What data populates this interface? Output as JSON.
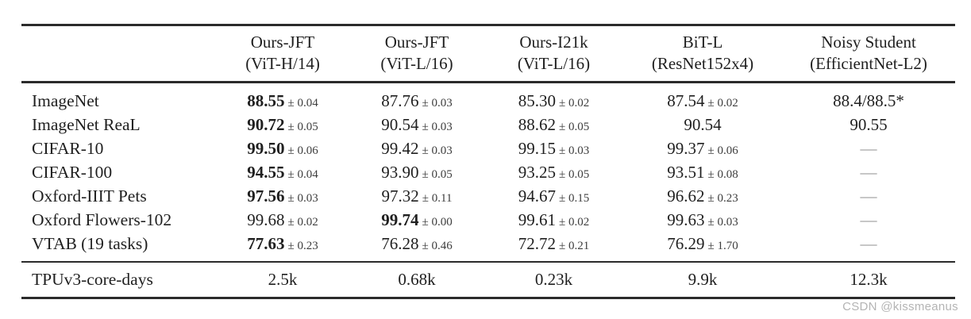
{
  "watermark": {
    "text": "CSDN @kissmeanus",
    "color": "#b4b4b4"
  },
  "colors": {
    "rule": "#2b2b2b",
    "text": "#1f1f1f",
    "error_margin": "#3d3d3d",
    "dash": "#8f8f8f",
    "background": "#ffffff"
  },
  "table": {
    "header": {
      "corner": "",
      "columns": [
        {
          "line1": "Ours-JFT",
          "line2": "(ViT-H/14)"
        },
        {
          "line1": "Ours-JFT",
          "line2": "(ViT-L/16)"
        },
        {
          "line1": "Ours-I21k",
          "line2": "(ViT-L/16)"
        },
        {
          "line1": "BiT-L",
          "line2": "(ResNet152x4)"
        },
        {
          "line1": "Noisy Student",
          "line2": "(EfficientNet-L2)"
        }
      ]
    },
    "rows": [
      {
        "label": "ImageNet",
        "cells": [
          {
            "value": "88.55",
            "err": "± 0.04",
            "bold": true
          },
          {
            "value": "87.76",
            "err": "± 0.03",
            "bold": false
          },
          {
            "value": "85.30",
            "err": "± 0.02",
            "bold": false
          },
          {
            "value": "87.54",
            "err": "± 0.02",
            "bold": false
          },
          {
            "value": "88.4/88.5*",
            "err": null,
            "bold": false
          }
        ]
      },
      {
        "label": "ImageNet ReaL",
        "cells": [
          {
            "value": "90.72",
            "err": "± 0.05",
            "bold": true
          },
          {
            "value": "90.54",
            "err": "± 0.03",
            "bold": false
          },
          {
            "value": "88.62",
            "err": "± 0.05",
            "bold": false
          },
          {
            "value": "90.54",
            "err": null,
            "bold": false
          },
          {
            "value": "90.55",
            "err": null,
            "bold": false
          }
        ]
      },
      {
        "label": "CIFAR-10",
        "cells": [
          {
            "value": "99.50",
            "err": "± 0.06",
            "bold": true
          },
          {
            "value": "99.42",
            "err": "± 0.03",
            "bold": false
          },
          {
            "value": "99.15",
            "err": "± 0.03",
            "bold": false
          },
          {
            "value": "99.37",
            "err": "± 0.06",
            "bold": false
          },
          {
            "value": "—",
            "err": null,
            "bold": false
          }
        ]
      },
      {
        "label": "CIFAR-100",
        "cells": [
          {
            "value": "94.55",
            "err": "± 0.04",
            "bold": true
          },
          {
            "value": "93.90",
            "err": "± 0.05",
            "bold": false
          },
          {
            "value": "93.25",
            "err": "± 0.05",
            "bold": false
          },
          {
            "value": "93.51",
            "err": "± 0.08",
            "bold": false
          },
          {
            "value": "—",
            "err": null,
            "bold": false
          }
        ]
      },
      {
        "label": "Oxford-IIIT Pets",
        "cells": [
          {
            "value": "97.56",
            "err": "± 0.03",
            "bold": true
          },
          {
            "value": "97.32",
            "err": "± 0.11",
            "bold": false
          },
          {
            "value": "94.67",
            "err": "± 0.15",
            "bold": false
          },
          {
            "value": "96.62",
            "err": "± 0.23",
            "bold": false
          },
          {
            "value": "—",
            "err": null,
            "bold": false
          }
        ]
      },
      {
        "label": "Oxford Flowers-102",
        "cells": [
          {
            "value": "99.68",
            "err": "± 0.02",
            "bold": false
          },
          {
            "value": "99.74",
            "err": "± 0.00",
            "bold": true
          },
          {
            "value": "99.61",
            "err": "± 0.02",
            "bold": false
          },
          {
            "value": "99.63",
            "err": "± 0.03",
            "bold": false
          },
          {
            "value": "—",
            "err": null,
            "bold": false
          }
        ]
      },
      {
        "label": "VTAB (19 tasks)",
        "cells": [
          {
            "value": "77.63",
            "err": "± 0.23",
            "bold": true
          },
          {
            "value": "76.28",
            "err": "± 0.46",
            "bold": false
          },
          {
            "value": "72.72",
            "err": "± 0.21",
            "bold": false
          },
          {
            "value": "76.29",
            "err": "± 1.70",
            "bold": false
          },
          {
            "value": "—",
            "err": null,
            "bold": false
          }
        ]
      }
    ],
    "footer": {
      "label": "TPUv3-core-days",
      "values": [
        "2.5k",
        "0.68k",
        "0.23k",
        "9.9k",
        "12.3k"
      ]
    }
  }
}
